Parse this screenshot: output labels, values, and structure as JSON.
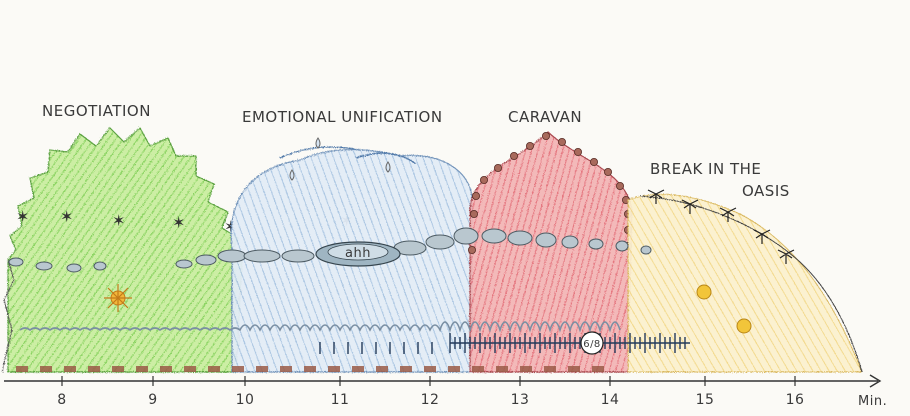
{
  "sections": [
    {
      "label": "NEGOTIATION",
      "color": "#7fd35a"
    },
    {
      "label": "EMOTIONAL UNIFICATION",
      "color": "#a9c6e6"
    },
    {
      "label": "CARAVAN",
      "color": "#e7707a"
    },
    {
      "label": "BREAK IN THE OASIS",
      "color": "#f6df8f"
    }
  ],
  "break_label": {
    "line1": "BREAK IN THE",
    "line2": "OASIS"
  },
  "bubble_text": "ahh",
  "meter_text": "6/8",
  "axis": {
    "ticks": [
      "8",
      "9",
      "10",
      "11",
      "12",
      "13",
      "14",
      "15",
      "16"
    ],
    "unit": "Min."
  },
  "colors": {
    "axis": "#333333",
    "dash": "#9a5a46",
    "wave": "#7a8fa3",
    "rhythm": "#233a5a"
  }
}
